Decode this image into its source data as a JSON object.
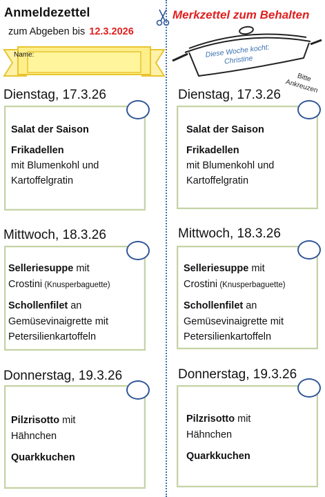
{
  "header": {
    "left_title": "Anmeldezettel",
    "right_title": "Merkzettel zum Behalten",
    "due_label": "zum Abgeben bis",
    "due_date": "12.3.2026",
    "name_label": "Name:",
    "cook_line1": "Diese Woche kocht:",
    "cook_line2": "Christine",
    "tick_hint": "Bitte Ankreuzen",
    "accent_red": "#e02020",
    "accent_blue": "#2f5597"
  },
  "days": [
    {
      "heading": "Dienstag, 17.3.26",
      "lines": [
        {
          "text": "Salat der Saison",
          "bold": true
        },
        {
          "text": "Frikadellen",
          "bold": true
        },
        {
          "text": "mit Blumenkohl und",
          "bold": false
        },
        {
          "text": "Kartoffelgratin",
          "bold": false
        }
      ]
    },
    {
      "heading": "Mittwoch, 18.3.26",
      "lines": [
        {
          "bold_part": "Selleriesuppe",
          "rest": " mit"
        },
        {
          "text": "Crostini",
          "small": " (Knusperbaguette)"
        },
        {
          "bold_part": "Schollenfilet",
          "rest": "  an"
        },
        {
          "text": "Gemüsevinaigrette mit",
          "bold": false
        },
        {
          "text": "Petersilienkartoffeln",
          "bold": false
        }
      ]
    },
    {
      "heading": "Donnerstag, 19.3.26",
      "lines": [
        {
          "bold_part": "Pilzrisotto",
          "rest": " mit"
        },
        {
          "text": "Hähnchen",
          "bold": false
        },
        {
          "text": "Quarkkuchen",
          "bold": true
        }
      ]
    }
  ]
}
